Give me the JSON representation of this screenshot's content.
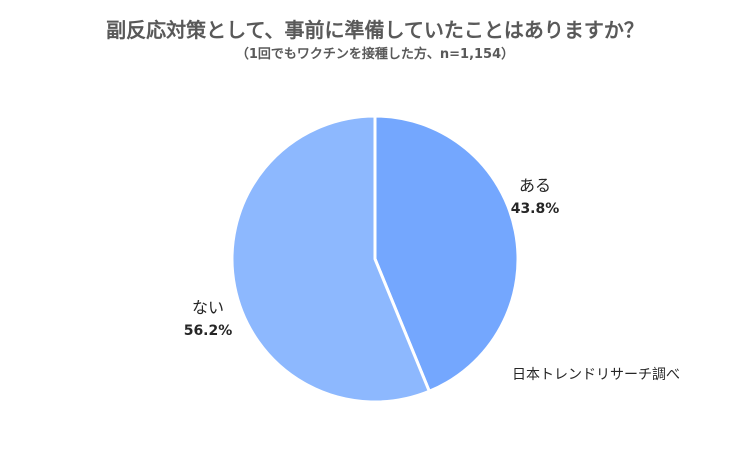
{
  "chart_data": {
    "type": "pie",
    "title": "副反応対策として、事前に準備していたことはありますか？",
    "subtitle": "（1回でもワクチンを接種した方、n=1,154）",
    "slices": [
      {
        "label": "ある",
        "value": 43.8,
        "value_label": "43.8%",
        "color": "#74a7fe"
      },
      {
        "label": "ない",
        "value": 56.2,
        "value_label": "56.2%",
        "color": "#8db8fe"
      }
    ],
    "start_angle": "12 o'clock",
    "direction": "clockwise"
  },
  "source_credit": "日本トレンドリサーチ調べ"
}
